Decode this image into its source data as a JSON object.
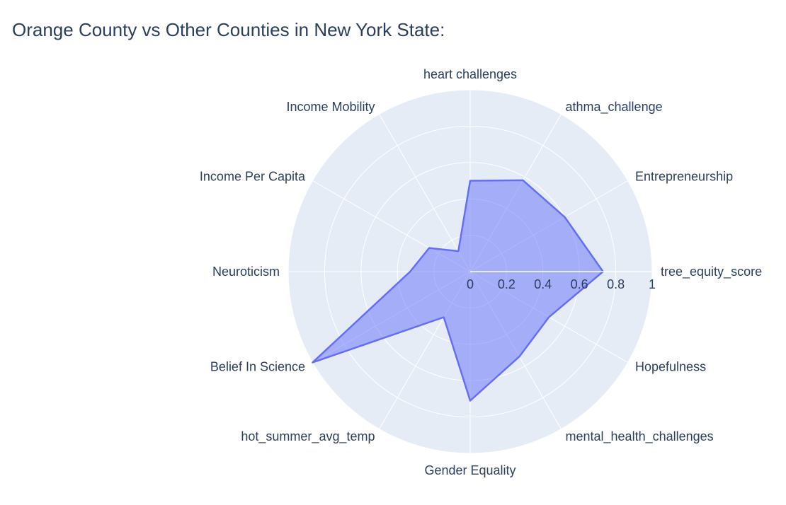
{
  "chart_data": {
    "type": "radar",
    "title": "Orange County vs Other Counties in New York State:",
    "categories": [
      "tree_equity_score",
      "Entrepreneurship",
      "athma_challenge",
      "heart challenges",
      "Income Mobility",
      "Income Per Capita",
      "Neuroticism",
      "Belief In Science",
      "hot_summer_avg_temp",
      "Gender Equality",
      "mental_health_challenges",
      "Hopefulness"
    ],
    "series": [
      {
        "values": [
          0.73,
          0.6,
          0.58,
          0.5,
          0.13,
          0.26,
          0.33,
          1.0,
          0.29,
          0.71,
          0.54,
          0.5
        ]
      }
    ],
    "radial_range": [
      0,
      1
    ],
    "radial_ticks": [
      "0",
      "0.2",
      "0.4",
      "0.6",
      "0.8",
      "1"
    ],
    "colors": {
      "title": "#2a3f5f",
      "text": "#2a3f5f",
      "polar_background": "#e5ecf6",
      "grid": "#ffffff",
      "series_line": "#636efa",
      "series_fill": "rgba(99,110,250,0.5)"
    }
  }
}
